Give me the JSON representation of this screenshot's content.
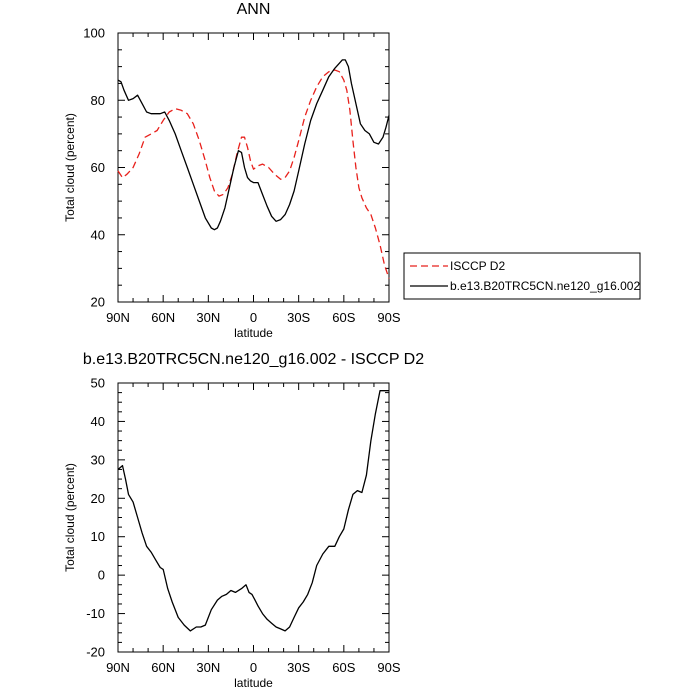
{
  "chart_data": [
    {
      "type": "line",
      "title": "ANN",
      "xlabel": "latitude",
      "ylabel": "Total cloud (percent)",
      "xlim": [
        90,
        -90
      ],
      "ylim": [
        20,
        100
      ],
      "x_ticks": [
        90,
        60,
        30,
        0,
        -30,
        -60,
        -90
      ],
      "x_tick_labels": [
        "90N",
        "60N",
        "30N",
        "0",
        "30S",
        "60S",
        "90S"
      ],
      "y_ticks": [
        20,
        40,
        60,
        80,
        100
      ],
      "y_tick_labels": [
        "20",
        "40",
        "60",
        "80",
        "100"
      ],
      "grid": false,
      "legend_position": "right, outside plot",
      "series": [
        {
          "name": "ISCCP D2",
          "color": "#e8211c",
          "style": "dashed",
          "x": [
            90,
            87,
            84,
            80,
            76,
            72,
            68,
            64,
            60,
            56,
            52,
            48,
            44,
            40,
            36,
            32,
            29,
            26,
            23,
            20,
            17,
            14,
            11,
            8,
            6,
            4,
            2,
            0,
            -3,
            -6,
            -10,
            -14,
            -18,
            -21,
            -24,
            -27,
            -30,
            -34,
            -38,
            -42,
            -46,
            -50,
            -54,
            -57,
            -60,
            -62,
            -64,
            -66,
            -68,
            -70,
            -72,
            -75,
            -78,
            -81,
            -84,
            -87,
            -90
          ],
          "y": [
            59,
            57,
            58,
            60,
            64,
            69,
            70,
            71,
            74,
            76.5,
            77.5,
            77,
            76,
            73,
            68,
            62,
            57,
            53,
            51.5,
            52,
            54,
            58,
            64,
            69,
            69,
            66,
            62,
            59.5,
            60.5,
            61,
            60,
            58,
            56.5,
            57,
            59,
            63,
            68,
            75,
            80,
            84,
            87,
            88.5,
            89,
            88.5,
            86,
            83,
            77,
            68,
            60,
            54,
            51,
            48,
            46,
            42,
            37,
            31,
            27
          ]
        },
        {
          "name": "b.e13.B20TRC5CN.ne120_g16.002",
          "color": "#000000",
          "style": "solid",
          "x": [
            90,
            88,
            86,
            83,
            80,
            77,
            74,
            71,
            68,
            65,
            62,
            59,
            56,
            52,
            48,
            44,
            40,
            36,
            32,
            28,
            26,
            24,
            22,
            19,
            16,
            13,
            10,
            8,
            6,
            4,
            2,
            0,
            -3,
            -6,
            -9,
            -12,
            -15,
            -18,
            -21,
            -24,
            -27,
            -30,
            -34,
            -38,
            -42,
            -46,
            -50,
            -54,
            -57,
            -59,
            -61,
            -63,
            -65,
            -68,
            -71,
            -74,
            -77,
            -80,
            -83,
            -86,
            -88,
            -90
          ],
          "y": [
            86,
            85.5,
            83,
            80,
            80.5,
            81.5,
            79,
            76.5,
            76,
            76,
            76,
            76.5,
            74,
            70,
            65,
            60,
            55,
            50,
            45,
            42,
            41.5,
            42,
            44,
            48,
            54,
            60,
            65,
            64.5,
            60,
            57,
            56,
            55.5,
            55.5,
            52,
            48.5,
            45.5,
            44,
            44.5,
            46,
            49,
            53,
            59,
            67,
            74,
            79,
            83,
            87,
            89.5,
            91,
            92,
            92,
            90,
            85,
            79,
            73,
            71,
            70,
            67.5,
            67,
            69,
            72,
            75.5
          ]
        }
      ]
    },
    {
      "type": "line",
      "title": "b.e13.B20TRC5CN.ne120_g16.002 - ISCCP D2",
      "xlabel": "latitude",
      "ylabel": "Total cloud (percent)",
      "xlim": [
        90,
        -90
      ],
      "ylim": [
        -20,
        50
      ],
      "x_ticks": [
        90,
        60,
        30,
        0,
        -30,
        -60,
        -90
      ],
      "x_tick_labels": [
        "90N",
        "60N",
        "30N",
        "0",
        "30S",
        "60S",
        "90S"
      ],
      "y_ticks": [
        -20,
        -10,
        0,
        10,
        20,
        30,
        40,
        50
      ],
      "y_tick_labels": [
        "-20",
        "-10",
        "0",
        "10",
        "20",
        "30",
        "40",
        "50"
      ],
      "grid": false,
      "series": [
        {
          "name": "",
          "color": "#000000",
          "style": "solid",
          "x": [
            90,
            87,
            85,
            83,
            80,
            77,
            74,
            71,
            68,
            65,
            62,
            60,
            57,
            54,
            50,
            46,
            42,
            38,
            35,
            32,
            28,
            24,
            21,
            18,
            15,
            12,
            8,
            5,
            3,
            1,
            -1,
            -3,
            -6,
            -9,
            -12,
            -15,
            -18,
            -21,
            -24,
            -27,
            -30,
            -33,
            -36,
            -39,
            -42,
            -46,
            -50,
            -54,
            -57,
            -60,
            -63,
            -66,
            -69,
            -72,
            -75,
            -78,
            -81,
            -84,
            -87,
            -90
          ],
          "y": [
            27.5,
            28.5,
            25,
            21,
            19,
            15,
            11,
            7.5,
            6,
            4,
            2,
            1.5,
            -3.5,
            -7,
            -11,
            -13,
            -14.5,
            -13.5,
            -13.5,
            -13,
            -9,
            -6.5,
            -5.5,
            -5,
            -4,
            -4.5,
            -3.5,
            -2.5,
            -4.5,
            -5,
            -6.5,
            -8,
            -10,
            -11.5,
            -12.5,
            -13.5,
            -14,
            -14.5,
            -13.5,
            -11,
            -8.5,
            -7,
            -5,
            -2,
            2.5,
            5.5,
            7.5,
            7.5,
            10,
            12,
            17,
            21,
            22,
            21.5,
            26,
            35,
            42,
            48,
            48,
            48
          ]
        }
      ]
    }
  ]
}
